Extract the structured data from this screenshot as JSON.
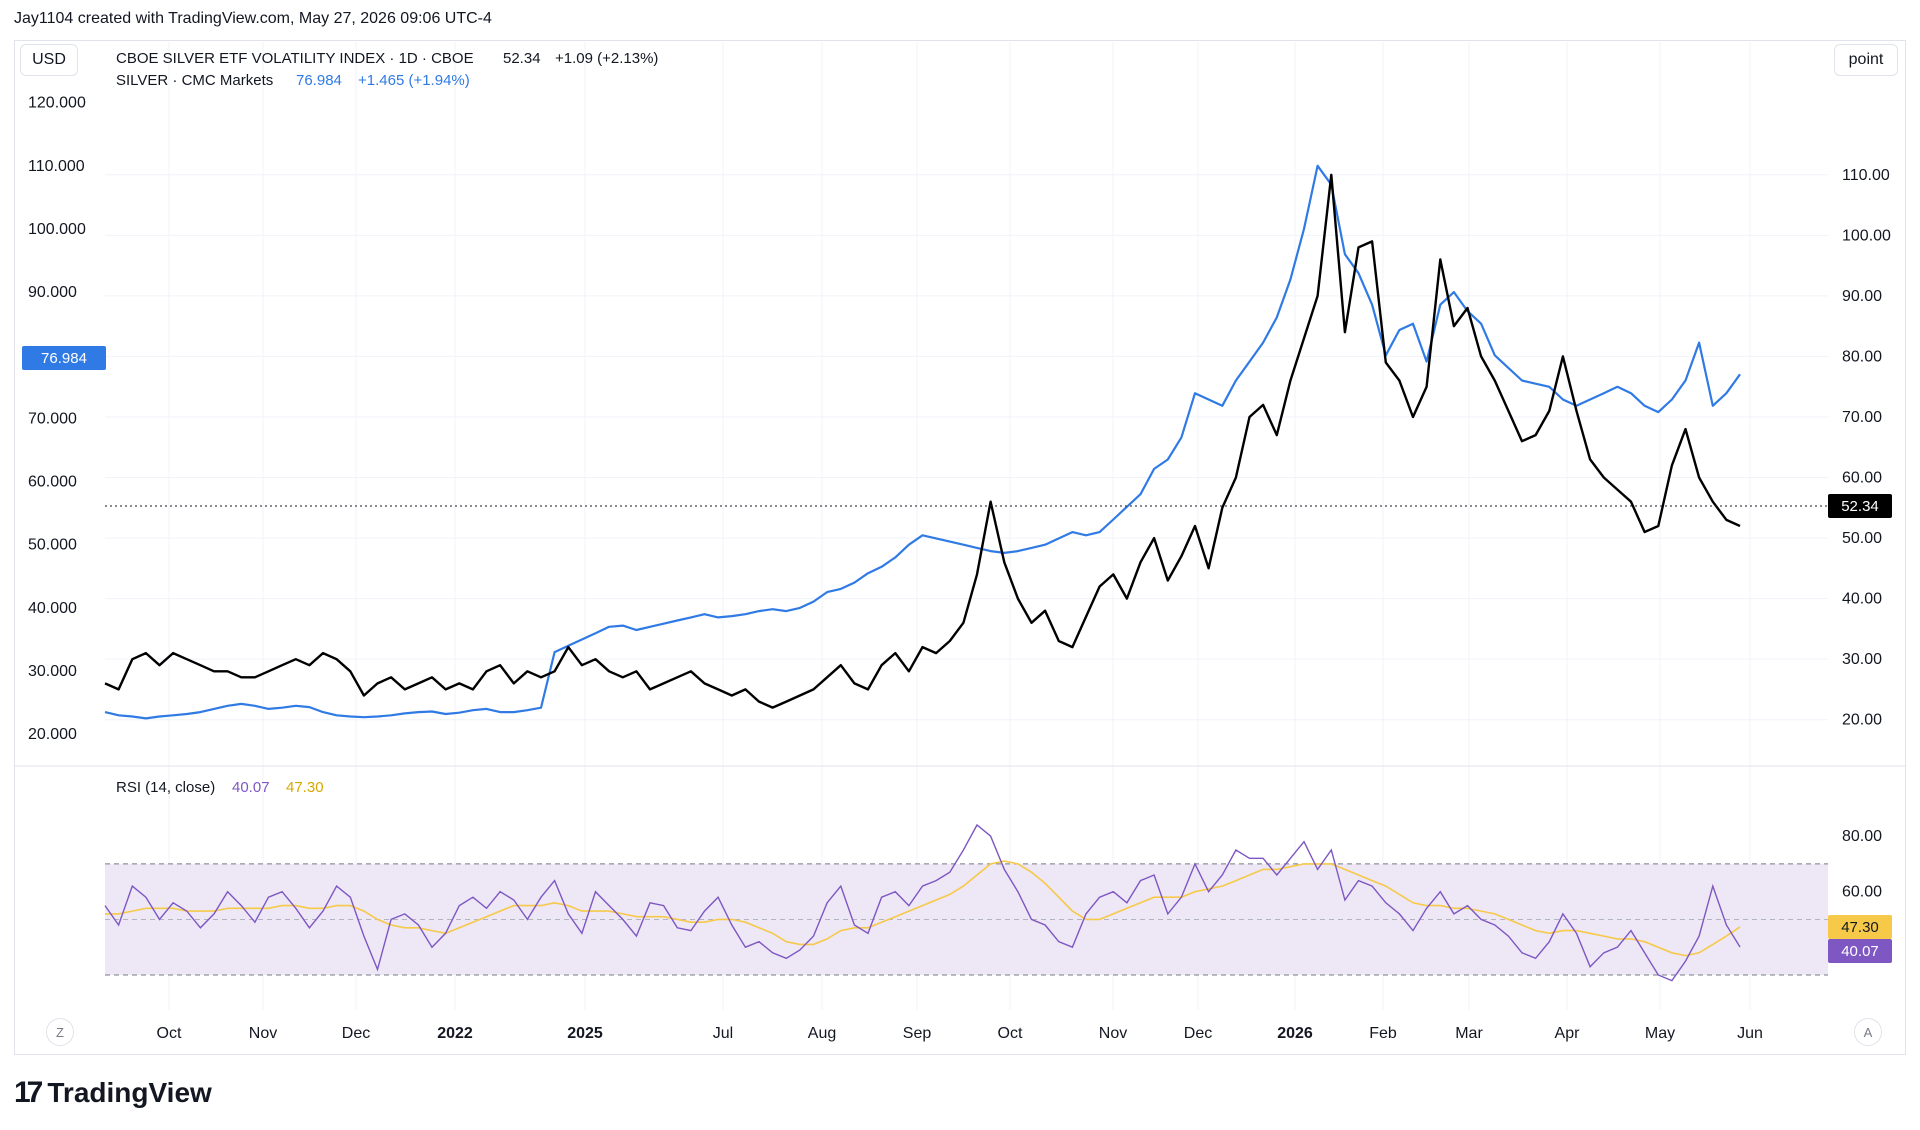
{
  "header": {
    "created_text": "Jay1104 created with TradingView.com, May 27, 2026 09:06 UTC-4"
  },
  "currency_label": "USD",
  "scale_label": "point",
  "legend": {
    "line1": {
      "name": "CBOE SILVER ETF VOLATILITY INDEX · 1D · CBOE",
      "value": "52.34",
      "change": "+1.09 (+2.13%)"
    },
    "line2": {
      "name": "SILVER · CMC Markets",
      "value": "76.984",
      "change": "+1.465 (+1.94%)"
    }
  },
  "rsi_legend": {
    "name": "RSI (14, close)",
    "rsi_value": "40.07",
    "ma_value": "47.30"
  },
  "price_tags": {
    "silver": "76.984",
    "vix": "52.34",
    "rsi": "40.07",
    "rsi_ma": "47.30"
  },
  "footer": {
    "brand": "TradingView"
  },
  "corner_buttons": {
    "left": "Z",
    "right": "A"
  },
  "colors": {
    "silver": "#2f7ae5",
    "vix": "#000000",
    "rsi": "#7e57c2",
    "rsi_ma": "#f7c948",
    "rsi_band": "#ede7f6"
  },
  "chart_data": [
    {
      "type": "line",
      "x_labels": [
        "Oct",
        "Nov",
        "Dec",
        "2022",
        "2025",
        "Jul",
        "Aug",
        "Sep",
        "Oct",
        "Nov",
        "Dec",
        "2026",
        "Feb",
        "Mar",
        "Apr",
        "May",
        "Jun"
      ],
      "left_axis": {
        "ticks": [
          "120.000",
          "110.000",
          "100.000",
          "90.000",
          "80.000",
          "70.000",
          "60.000",
          "50.000",
          "40.000",
          "30.000",
          "20.000"
        ],
        "ylim": [
          17.5,
          122
        ]
      },
      "right_axis": {
        "ticks": [
          "110.00",
          "100.00",
          "90.00",
          "80.00",
          "70.00",
          "60.00",
          "50.00",
          "40.00",
          "30.00",
          "20.00"
        ],
        "ylim": [
          15,
          124
        ]
      },
      "grid": true,
      "series": [
        {
          "name": "CBOE SILVER ETF VOLATILITY INDEX",
          "axis": "right",
          "color": "#000000",
          "x": [
            0,
            1,
            2,
            3,
            4,
            5,
            6,
            7,
            8,
            9,
            10,
            11,
            12,
            13,
            14,
            15,
            16,
            17,
            18,
            19,
            20,
            21,
            22,
            23,
            24,
            25,
            26,
            27,
            28,
            29,
            30,
            31,
            32,
            33,
            34,
            35,
            36,
            37,
            38,
            39,
            40,
            41,
            42,
            43,
            44,
            45,
            46,
            47,
            48,
            49,
            50,
            51,
            52,
            53,
            54,
            55,
            56,
            57,
            58,
            59,
            60,
            61,
            62,
            63,
            64,
            65,
            66,
            67,
            68,
            69,
            70,
            71,
            72,
            73,
            74,
            75,
            76,
            77,
            78,
            79,
            80,
            81,
            82,
            83,
            84,
            85,
            86,
            87,
            88,
            89,
            90,
            91,
            92,
            93,
            94,
            95,
            96,
            97,
            98,
            99,
            100,
            101,
            102,
            103,
            104,
            105,
            106,
            107,
            108,
            109,
            110,
            111,
            112,
            113,
            114,
            115,
            116,
            117,
            118,
            119,
            120
          ],
          "values": [
            26,
            25,
            30,
            31,
            29,
            31,
            30,
            29,
            28,
            28,
            27,
            27,
            28,
            29,
            30,
            29,
            31,
            30,
            28,
            24,
            26,
            27,
            25,
            26,
            27,
            25,
            26,
            25,
            28,
            29,
            26,
            28,
            27,
            28,
            32,
            29,
            30,
            28,
            27,
            28,
            25,
            26,
            27,
            28,
            26,
            25,
            24,
            25,
            23,
            22,
            23,
            24,
            25,
            27,
            29,
            26,
            25,
            29,
            31,
            28,
            32,
            31,
            33,
            36,
            44,
            56,
            46,
            40,
            36,
            38,
            33,
            32,
            37,
            42,
            44,
            40,
            46,
            50,
            43,
            47,
            52,
            45,
            55,
            60,
            70,
            72,
            67,
            76,
            83,
            90,
            110,
            84,
            98,
            99,
            79,
            76,
            70,
            75,
            96,
            85,
            88,
            80,
            76,
            71,
            66,
            67,
            71,
            80,
            71,
            63,
            60,
            58,
            56,
            51,
            52,
            62,
            68,
            60,
            56,
            53,
            52
          ],
          "last_value": 52.34
        },
        {
          "name": "SILVER · CMC Markets",
          "axis": "left",
          "color": "#2f7ae5",
          "x": [
            0,
            1,
            2,
            3,
            4,
            5,
            6,
            7,
            8,
            9,
            10,
            11,
            12,
            13,
            14,
            15,
            16,
            17,
            18,
            19,
            20,
            21,
            22,
            23,
            24,
            25,
            26,
            27,
            28,
            29,
            30,
            31,
            32,
            33,
            34,
            35,
            36,
            37,
            38,
            39,
            40,
            41,
            42,
            43,
            44,
            45,
            46,
            47,
            48,
            49,
            50,
            51,
            52,
            53,
            54,
            55,
            56,
            57,
            58,
            59,
            60,
            61,
            62,
            63,
            64,
            65,
            66,
            67,
            68,
            69,
            70,
            71,
            72,
            73,
            74,
            75,
            76,
            77,
            78,
            79,
            80,
            81,
            82,
            83,
            84,
            85,
            86,
            87,
            88,
            89,
            90,
            91,
            92,
            93,
            94,
            95,
            96,
            97,
            98,
            99,
            100,
            101,
            102,
            103,
            104,
            105,
            106,
            107,
            108,
            109,
            110,
            111,
            112,
            113,
            114,
            115,
            116,
            117,
            118,
            119,
            120
          ],
          "values": [
            23.5,
            23,
            22.8,
            22.5,
            22.8,
            23,
            23.2,
            23.5,
            24,
            24.5,
            24.8,
            24.5,
            24,
            24.2,
            24.5,
            24.3,
            23.5,
            23,
            22.8,
            22.7,
            22.8,
            23,
            23.3,
            23.5,
            23.6,
            23.2,
            23.4,
            23.8,
            24,
            23.5,
            23.5,
            23.8,
            24.2,
            33,
            34,
            35,
            36,
            37,
            37.2,
            36.5,
            37,
            37.5,
            38,
            38.5,
            39,
            38.5,
            38.7,
            39,
            39.5,
            39.8,
            39.5,
            40,
            41,
            42.5,
            43,
            44,
            45.5,
            46.5,
            48,
            50,
            51.5,
            51,
            50.5,
            50,
            49.5,
            49,
            48.7,
            49,
            49.5,
            50,
            51,
            52,
            51.5,
            52,
            54,
            56,
            58,
            62,
            63.5,
            67,
            74,
            73,
            72,
            76,
            79,
            82,
            86,
            92,
            100,
            110,
            107,
            96,
            93,
            88,
            80,
            84,
            85,
            79,
            88,
            90,
            87,
            85,
            80,
            78,
            76,
            75.5,
            75,
            73,
            72,
            73,
            74,
            75,
            74,
            72,
            71,
            73,
            76,
            82,
            72,
            74,
            76.984
          ],
          "last_value": 76.984
        }
      ]
    },
    {
      "type": "line",
      "title": "RSI (14, close)",
      "axis": {
        "ticks": [
          "80.00",
          "60.00"
        ],
        "ylim": [
          21,
          93
        ]
      },
      "bands": {
        "upper": 70,
        "middle": 50,
        "lower": 30
      },
      "series": [
        {
          "name": "RSI",
          "color": "#7e57c2",
          "values": [
            55,
            48,
            62,
            58,
            50,
            56,
            53,
            47,
            52,
            60,
            55,
            49,
            58,
            60,
            54,
            47,
            53,
            62,
            58,
            44,
            32,
            50,
            52,
            48,
            40,
            45,
            55,
            58,
            54,
            60,
            57,
            50,
            58,
            64,
            52,
            45,
            60,
            55,
            50,
            44,
            56,
            55,
            47,
            46,
            53,
            58,
            48,
            40,
            42,
            38,
            36,
            39,
            44,
            56,
            62,
            48,
            45,
            58,
            60,
            55,
            62,
            64,
            67,
            75,
            84,
            80,
            68,
            60,
            50,
            48,
            42,
            40,
            52,
            58,
            60,
            56,
            64,
            66,
            52,
            58,
            70,
            60,
            66,
            75,
            72,
            72,
            66,
            72,
            78,
            68,
            75,
            57,
            64,
            62,
            56,
            52,
            46,
            54,
            60,
            52,
            55,
            50,
            48,
            44,
            38,
            36,
            42,
            52,
            45,
            33,
            38,
            40,
            46,
            38,
            30,
            28,
            35,
            44,
            62,
            48,
            40.07
          ]
        },
        {
          "name": "RSI MA",
          "color": "#f7c948",
          "values": [
            52,
            52,
            53,
            54,
            54,
            54,
            53,
            53,
            53,
            54,
            54,
            54,
            54,
            55,
            55,
            54,
            54,
            55,
            55,
            53,
            50,
            48,
            47,
            47,
            46,
            45,
            47,
            49,
            51,
            53,
            55,
            55,
            55,
            56,
            55,
            53,
            53,
            53,
            52,
            51,
            51,
            51,
            50,
            49,
            49,
            50,
            50,
            49,
            47,
            45,
            42,
            41,
            41,
            43,
            46,
            47,
            47,
            49,
            51,
            53,
            55,
            57,
            59,
            62,
            66,
            70,
            71,
            70,
            67,
            63,
            58,
            53,
            50,
            50,
            52,
            54,
            56,
            58,
            58,
            58,
            60,
            61,
            62,
            64,
            66,
            68,
            68,
            69,
            70,
            70,
            70,
            68,
            66,
            64,
            62,
            59,
            56,
            55,
            55,
            54,
            54,
            53,
            52,
            50,
            48,
            46,
            45,
            46,
            46,
            45,
            44,
            43,
            43,
            42,
            40,
            38,
            37,
            38,
            41,
            44,
            47.3
          ]
        }
      ]
    }
  ]
}
